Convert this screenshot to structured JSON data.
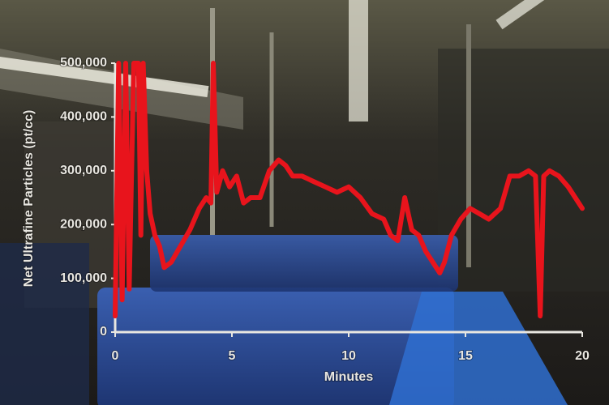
{
  "chart_data": {
    "type": "line",
    "x_label": "Minutes",
    "y_label": "Net Ultrafine Particles (pt/cc)",
    "color": "#e8141c",
    "x": [
      0.0,
      0.15,
      0.3,
      0.45,
      0.6,
      0.8,
      1.0,
      1.1,
      1.2,
      1.35,
      1.5,
      1.7,
      1.9,
      2.1,
      2.4,
      2.8,
      3.2,
      3.6,
      3.9,
      4.1,
      4.2,
      4.35,
      4.6,
      4.9,
      5.2,
      5.5,
      5.8,
      6.2,
      6.6,
      7.0,
      7.3,
      7.6,
      8.0,
      8.5,
      9.0,
      9.5,
      10.0,
      10.5,
      11.0,
      11.5,
      11.8,
      12.1,
      12.4,
      12.7,
      13.0,
      13.3,
      13.6,
      13.9,
      14.1,
      14.4,
      14.8,
      15.2,
      15.6,
      16.0,
      16.5,
      16.9,
      17.3,
      17.7,
      18.0,
      18.2,
      18.35,
      18.6,
      19.0,
      19.4,
      19.7,
      20.0
    ],
    "values": [
      30000,
      500000,
      60000,
      500000,
      80000,
      500000,
      500000,
      180000,
      500000,
      300000,
      220000,
      180000,
      160000,
      120000,
      130000,
      160000,
      190000,
      230000,
      250000,
      240000,
      500000,
      260000,
      300000,
      270000,
      290000,
      240000,
      250000,
      250000,
      300000,
      320000,
      310000,
      290000,
      290000,
      280000,
      270000,
      260000,
      270000,
      250000,
      220000,
      210000,
      180000,
      170000,
      250000,
      190000,
      180000,
      150000,
      130000,
      110000,
      130000,
      180000,
      210000,
      230000,
      220000,
      210000,
      230000,
      290000,
      290000,
      300000,
      290000,
      30000,
      290000,
      300000,
      290000,
      270000,
      250000,
      230000
    ],
    "xlim": [
      0,
      20
    ],
    "xticks": [
      0,
      5,
      10,
      15,
      20
    ],
    "ylim": [
      0,
      500000
    ],
    "yticks": [
      0,
      {
        "value": 100000,
        "label": "100,000"
      },
      {
        "value": 200000,
        "label": "200,000"
      },
      {
        "value": 300000,
        "label": "300,000"
      },
      {
        "value": 400000,
        "label": "400,000"
      },
      {
        "value": 500000,
        "label": "500,000"
      }
    ]
  }
}
